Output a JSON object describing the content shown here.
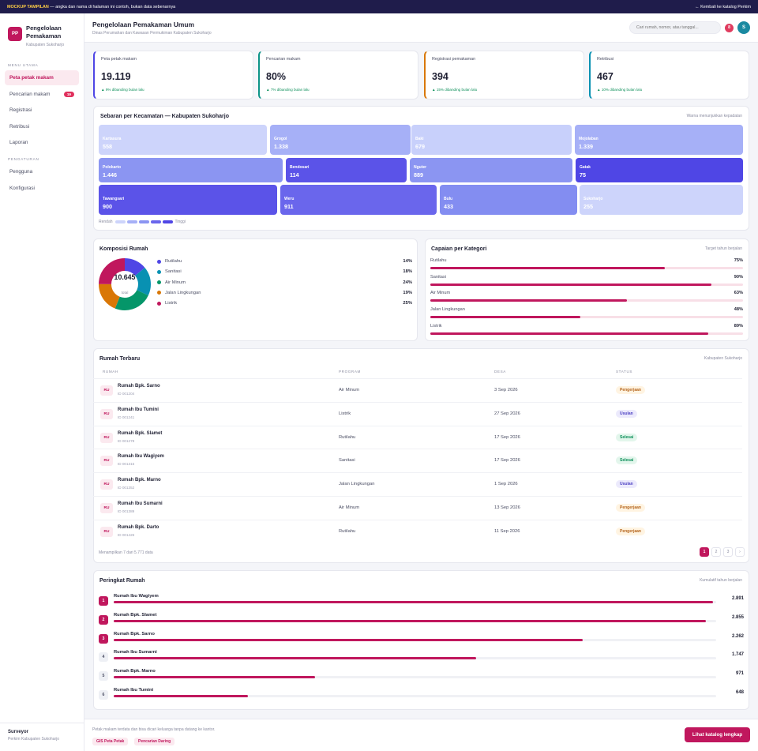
{
  "banner": {
    "tag": "MOCKUP TAMPILAN",
    "text": " — angka dan nama di halaman ini contoh, bukan data sebenarnya",
    "back": "← Kembali ke katalog Perkim"
  },
  "app": {
    "logo": "PP",
    "name_1": "Pengelolaan",
    "name_2": "Pemakaman",
    "region": "Kabupaten Sukoharjo"
  },
  "sidebar": {
    "section_main": "MENU UTAMA",
    "main_items": [
      {
        "label": "Peta petak makam",
        "active": true
      },
      {
        "label": "Pencarian makam",
        "badge": "19"
      },
      {
        "label": "Registrasi"
      },
      {
        "label": "Retribusi"
      },
      {
        "label": "Laporan"
      }
    ],
    "section_settings": "PENGATURAN",
    "settings_items": [
      {
        "label": "Pengguna"
      },
      {
        "label": "Konfigurasi"
      }
    ],
    "user_name": "Surveyor",
    "user_role": "Perkim Kabupaten Sukoharjo"
  },
  "header": {
    "title": "Pengelolaan Pemakaman Umum",
    "subtitle": "Dinas Perumahan dan Kawasan Permukiman Kabupaten Sukoharjo",
    "search_placeholder": "Cari rumah, nomor, atau tanggal...",
    "notif_count": "8",
    "avatar": "S"
  },
  "kpis": [
    {
      "label": "Peta petak makam",
      "value": "19.119",
      "delta": "▲ 9% dibanding bulan lalu",
      "color": "#4f46e5"
    },
    {
      "label": "Pencarian makam",
      "value": "80%",
      "delta": "▲ 7% dibanding bulan lalu",
      "color": "#0d9488"
    },
    {
      "label": "Registrasi pemakaman",
      "value": "394",
      "delta": "▲ 15% dibanding bulan lalu",
      "color": "#d97706"
    },
    {
      "label": "Retribusi",
      "value": "467",
      "delta": "▲ 10% dibanding bulan lalu",
      "color": "#0891b2"
    }
  ],
  "treemap": {
    "title": "Sebaran per Kecamatan — Kabupaten Sukoharjo",
    "note": "Warna menunjukkan kepadatan",
    "tiles": [
      {
        "name": "Kartasura",
        "value": "558",
        "color": "#cdd4fb"
      },
      {
        "name": "Grogol",
        "value": "1.338",
        "color": "#a6b0f7"
      },
      {
        "name": "Baki",
        "value": "679",
        "color": "#c8d0fb"
      },
      {
        "name": "Mojolaban",
        "value": "1.339",
        "color": "#a6b0f7"
      },
      {
        "name": "Polokarto",
        "value": "1.446",
        "color": "#8b95f2"
      },
      {
        "name": "Bendosari",
        "value": "114",
        "color": "#5b53e8"
      },
      {
        "name": "Nguter",
        "value": "889",
        "color": "#8b95f2"
      },
      {
        "name": "Gatak",
        "value": "75",
        "color": "#4f46e5"
      },
      {
        "name": "Tawangsari",
        "value": "900",
        "color": "#5b53e8"
      },
      {
        "name": "Weru",
        "value": "911",
        "color": "#6a66ec"
      },
      {
        "name": "Bulu",
        "value": "433",
        "color": "#838df1"
      },
      {
        "name": "Sukoharjo",
        "value": "255",
        "color": "#cdd4fb"
      }
    ],
    "legend_low": "Rendah",
    "legend_high": "Tinggi",
    "legend_colors": [
      "#cdd4fb",
      "#a6b0f7",
      "#8b95f2",
      "#6a66ec",
      "#4f46e5"
    ]
  },
  "composition": {
    "title": "Komposisi Rumah",
    "total": "10.645",
    "total_label": "total",
    "items": [
      {
        "label": "Rutilahu",
        "pct": "14%",
        "value": 14,
        "color": "#4f46e5"
      },
      {
        "label": "Sanitasi",
        "pct": "18%",
        "value": 18,
        "color": "#0891b2"
      },
      {
        "label": "Air Minum",
        "pct": "24%",
        "value": 24,
        "color": "#059669"
      },
      {
        "label": "Jalan Lingkungan",
        "pct": "19%",
        "value": 19,
        "color": "#d97706"
      },
      {
        "label": "Listrik",
        "pct": "25%",
        "value": 25,
        "color": "#c0175d"
      }
    ]
  },
  "achievement": {
    "title": "Capaian per Kategori",
    "note": "Target tahun berjalan",
    "items": [
      {
        "label": "Rutilahu",
        "pct": "75%",
        "value": 0.75
      },
      {
        "label": "Sanitasi",
        "pct": "90%",
        "value": 0.9
      },
      {
        "label": "Air Minum",
        "pct": "63%",
        "value": 0.63
      },
      {
        "label": "Jalan Lingkungan",
        "pct": "48%",
        "value": 0.48
      },
      {
        "label": "Listrik",
        "pct": "89%",
        "value": 0.89
      }
    ]
  },
  "recent": {
    "title": "Rumah Terbaru",
    "note": "Kabupaten Sukoharjo",
    "columns": [
      "RUMAH",
      "PROGRAM",
      "DESA",
      "STATUS"
    ],
    "rows": [
      {
        "icon": "RU",
        "name": "Rumah Bpk. Sarno",
        "id": "ID 001204",
        "program": "Air Minum",
        "date": "3 Sep 2026",
        "status": "Pengerjaan",
        "kind": "p"
      },
      {
        "icon": "RU",
        "name": "Rumah Ibu Tumini",
        "id": "ID 001241",
        "program": "Listrik",
        "date": "27 Sep 2026",
        "status": "Usulan",
        "kind": "u"
      },
      {
        "icon": "RU",
        "name": "Rumah Bpk. Slamet",
        "id": "ID 001278",
        "program": "Rutilahu",
        "date": "17 Sep 2026",
        "status": "Selesai",
        "kind": "s"
      },
      {
        "icon": "RU",
        "name": "Rumah Ibu Wagiyem",
        "id": "ID 001315",
        "program": "Sanitasi",
        "date": "17 Sep 2026",
        "status": "Selesai",
        "kind": "s"
      },
      {
        "icon": "RU",
        "name": "Rumah Bpk. Marno",
        "id": "ID 001352",
        "program": "Jalan Lingkungan",
        "date": "1 Sep 2026",
        "status": "Usulan",
        "kind": "u"
      },
      {
        "icon": "RU",
        "name": "Rumah Ibu Sumarni",
        "id": "ID 001389",
        "program": "Air Minum",
        "date": "13 Sep 2026",
        "status": "Pengerjaan",
        "kind": "p"
      },
      {
        "icon": "RU",
        "name": "Rumah Bpk. Darto",
        "id": "ID 001426",
        "program": "Rutilahu",
        "date": "11 Sep 2026",
        "status": "Pengerjaan",
        "kind": "p"
      }
    ],
    "showing": "Menampilkan 7 dari 5.771 data",
    "pages": [
      "1",
      "2",
      "3",
      "›"
    ]
  },
  "ranking": {
    "title": "Peringkat Rumah",
    "note": "Kumulatif tahun berjalan",
    "items": [
      {
        "rank": "1",
        "name": "Rumah Ibu Wagiyem",
        "value": "2.891",
        "n": 2891
      },
      {
        "rank": "2",
        "name": "Rumah Bpk. Slamet",
        "value": "2.855",
        "n": 2855
      },
      {
        "rank": "3",
        "name": "Rumah Bpk. Sarno",
        "value": "2.262",
        "n": 2262
      },
      {
        "rank": "4",
        "name": "Rumah Ibu Sumarni",
        "value": "1.747",
        "n": 1747
      },
      {
        "rank": "5",
        "name": "Rumah Bpk. Marno",
        "value": "971",
        "n": 971
      },
      {
        "rank": "6",
        "name": "Rumah Ibu Tumini",
        "value": "648",
        "n": 648
      }
    ]
  },
  "footer": {
    "note": "Petak makam terdata dan bisa dicari keluarga tanpa datang ke kantor.",
    "chips": [
      "GIS Peta Petak",
      "Pencarian Daring"
    ],
    "cta": "Lihat katalog lengkap"
  }
}
